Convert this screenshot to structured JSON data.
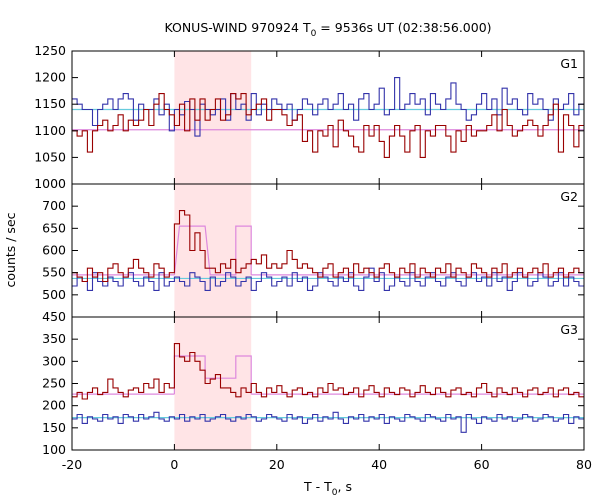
{
  "chart_data": {
    "type": "line",
    "title_main": "KONUS-WIND 970924 T",
    "title_sub": "0",
    "title_rest": " = 9536s UT (02:38:56.000)",
    "xlabel_main": "T - T",
    "xlabel_sub": "0",
    "xlabel_rest": ", s",
    "ylabel": "counts / sec",
    "xlim": [
      -20,
      80
    ],
    "xticks": [
      "-20",
      "0",
      "20",
      "40",
      "60",
      "80"
    ],
    "highlight_interval": [
      0,
      15
    ],
    "colors": {
      "bg_series": "#3333aa",
      "src_series": "#990000",
      "bg_fit": "#66ccdd",
      "src_fit": "#dd88dd",
      "highlight": "#ffe4e6"
    },
    "panels": [
      {
        "label": "G1",
        "ylim": [
          1000,
          1250
        ],
        "yticks": [
          "1000",
          "1050",
          "1100",
          "1150",
          "1200",
          "1250"
        ],
        "bg_level": 1140,
        "src_level": 1102,
        "fit_steps": [],
        "bg_values": [
          1160,
          1150,
          1140,
          1140,
          1110,
          1140,
          1150,
          1160,
          1140,
          1160,
          1170,
          1160,
          1120,
          1150,
          1140,
          1140,
          1160,
          1130,
          1150,
          1100,
          1140,
          1130,
          1155,
          1140,
          1090,
          1150,
          1140,
          1130,
          1140,
          1160,
          1120,
          1170,
          1140,
          1150,
          1120,
          1170,
          1130,
          1150,
          1140,
          1160,
          1150,
          1140,
          1150,
          1120,
          1140,
          1160,
          1150,
          1130,
          1150,
          1160,
          1140,
          1150,
          1170,
          1140,
          1150,
          1120,
          1160,
          1170,
          1140,
          1150,
          1180,
          1130,
          1140,
          1200,
          1140,
          1150,
          1170,
          1150,
          1160,
          1130,
          1170,
          1150,
          1140,
          1160,
          1190,
          1150,
          1140,
          1120,
          1130,
          1150,
          1170,
          1140,
          1160,
          1130,
          1180,
          1150,
          1160,
          1140,
          1130,
          1170,
          1150,
          1160,
          1140,
          1120,
          1160,
          1140,
          1150,
          1170,
          1130,
          1150
        ],
        "src_values": [
          1100,
          1090,
          1100,
          1060,
          1100,
          1110,
          1120,
          1100,
          1110,
          1130,
          1100,
          1120,
          1110,
          1120,
          1140,
          1110,
          1150,
          1170,
          1140,
          1130,
          1110,
          1150,
          1100,
          1160,
          1120,
          1160,
          1120,
          1140,
          1160,
          1120,
          1130,
          1170,
          1160,
          1170,
          1130,
          1140,
          1150,
          1160,
          1120,
          1140,
          1140,
          1130,
          1110,
          1120,
          1130,
          1080,
          1100,
          1060,
          1100,
          1090,
          1110,
          1070,
          1120,
          1100,
          1090,
          1070,
          1060,
          1110,
          1090,
          1110,
          1080,
          1050,
          1090,
          1110,
          1090,
          1060,
          1100,
          1110,
          1050,
          1100,
          1090,
          1110,
          1110,
          1090,
          1060,
          1100,
          1080,
          1110,
          1090,
          1100,
          1100,
          1110,
          1130,
          1100,
          1140,
          1110,
          1090,
          1100,
          1110,
          1120,
          1110,
          1090,
          1110,
          1130,
          1150,
          1060,
          1130,
          1110,
          1070,
          1110
        ]
      },
      {
        "label": "G2",
        "ylim": [
          450,
          750
        ],
        "yticks": [
          "450",
          "500",
          "550",
          "600",
          "650",
          "700"
        ],
        "bg_level": 537,
        "src_level": 545,
        "fit_steps": [
          [
            0,
            545
          ],
          [
            1,
            655
          ],
          [
            6,
            655
          ],
          [
            7,
            545
          ],
          [
            12,
            545
          ],
          [
            12,
            655
          ],
          [
            15,
            655
          ],
          [
            15,
            545
          ]
        ],
        "bg_values": [
          520,
          540,
          530,
          510,
          550,
          530,
          520,
          540,
          530,
          520,
          540,
          550,
          530,
          520,
          540,
          530,
          510,
          550,
          520,
          530,
          540,
          530,
          520,
          550,
          540,
          530,
          510,
          540,
          520,
          530,
          550,
          540,
          520,
          530,
          540,
          510,
          530,
          550,
          540,
          520,
          530,
          540,
          520,
          550,
          530,
          540,
          510,
          520,
          550,
          540,
          530,
          520,
          540,
          530,
          550,
          520,
          510,
          540,
          560,
          530,
          550,
          510,
          520,
          540,
          530,
          520,
          550,
          530,
          520,
          540,
          550,
          530,
          520,
          540,
          550,
          530,
          520,
          540,
          550,
          530,
          540,
          520,
          550,
          530,
          540,
          510,
          530,
          550,
          540,
          520,
          530,
          550,
          540,
          520,
          530,
          550,
          520,
          540,
          530,
          520
        ],
        "src_values": [
          550,
          540,
          530,
          560,
          540,
          550,
          530,
          560,
          570,
          550,
          540,
          560,
          580,
          560,
          550,
          540,
          570,
          560,
          540,
          550,
          660,
          690,
          680,
          600,
          640,
          600,
          560,
          560,
          550,
          570,
          560,
          580,
          550,
          560,
          570,
          580,
          570,
          590,
          560,
          570,
          560,
          570,
          600,
          580,
          560,
          570,
          560,
          550,
          540,
          560,
          570,
          540,
          550,
          560,
          540,
          570,
          550,
          560,
          550,
          540,
          560,
          570,
          550,
          540,
          560,
          550,
          570,
          540,
          560,
          550,
          540,
          560,
          550,
          570,
          540,
          560,
          550,
          540,
          570,
          560,
          550,
          540,
          560,
          550,
          570,
          540,
          550,
          560,
          540,
          550,
          560,
          550,
          570,
          540,
          550,
          560,
          540,
          550,
          560,
          550
        ]
      },
      {
        "label": "G3",
        "ylim": [
          100,
          400
        ],
        "yticks": [
          "100",
          "150",
          "200",
          "250",
          "300",
          "350"
        ],
        "bg_level": 173,
        "src_level": 226,
        "fit_steps": [
          [
            0,
            226
          ],
          [
            0,
            312
          ],
          [
            6,
            312
          ],
          [
            6,
            262
          ],
          [
            12,
            262
          ],
          [
            12,
            312
          ],
          [
            15,
            312
          ],
          [
            15,
            226
          ]
        ],
        "bg_values": [
          170,
          180,
          160,
          175,
          170,
          165,
          180,
          170,
          175,
          160,
          180,
          175,
          165,
          180,
          170,
          175,
          185,
          170,
          165,
          175,
          170,
          180,
          165,
          175,
          170,
          180,
          165,
          170,
          175,
          180,
          170,
          165,
          175,
          170,
          180,
          175,
          165,
          170,
          180,
          175,
          170,
          165,
          180,
          170,
          175,
          160,
          170,
          180,
          165,
          175,
          170,
          185,
          170,
          160,
          175,
          170,
          180,
          165,
          175,
          170,
          180,
          160,
          175,
          170,
          165,
          180,
          175,
          170,
          165,
          180,
          175,
          170,
          165,
          180,
          170,
          175,
          140,
          180,
          170,
          160,
          175,
          170,
          165,
          180,
          170,
          175,
          165,
          170,
          180,
          175,
          165,
          170,
          180,
          175,
          165,
          170,
          180,
          160,
          175,
          170
        ],
        "src_values": [
          220,
          230,
          215,
          230,
          240,
          225,
          230,
          260,
          240,
          230,
          220,
          235,
          240,
          230,
          250,
          240,
          260,
          230,
          250,
          240,
          340,
          310,
          300,
          320,
          300,
          280,
          250,
          260,
          270,
          240,
          240,
          230,
          220,
          240,
          230,
          250,
          230,
          220,
          240,
          230,
          245,
          230,
          220,
          235,
          240,
          225,
          230,
          220,
          240,
          230,
          250,
          235,
          240,
          225,
          230,
          240,
          220,
          235,
          245,
          230,
          220,
          240,
          230,
          225,
          240,
          235,
          220,
          230,
          245,
          230,
          225,
          240,
          230,
          220,
          235,
          240,
          225,
          230,
          220,
          240,
          250,
          230,
          220,
          240,
          230,
          225,
          240,
          230,
          220,
          235,
          240,
          225,
          230,
          240,
          220,
          235,
          240,
          225,
          230,
          220
        ]
      }
    ]
  }
}
